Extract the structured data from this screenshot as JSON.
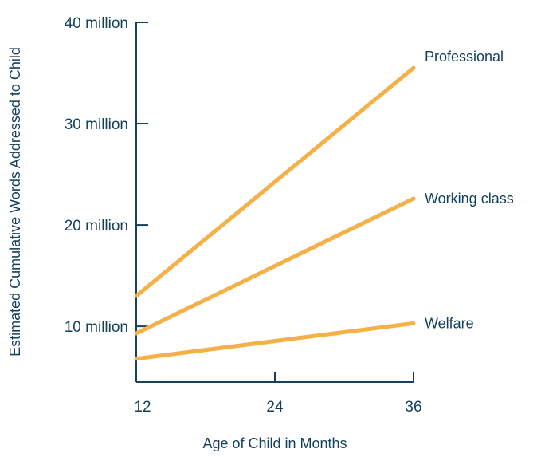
{
  "chart_data": {
    "type": "line",
    "title": "",
    "xlabel": "Age of Child in Months",
    "ylabel": "Estimated Cumulative Words Addressed to Child",
    "x": [
      12,
      36
    ],
    "xlim": [
      12,
      36
    ],
    "xticks": [
      12,
      24,
      36
    ],
    "xtick_labels": [
      "12",
      "24",
      "36"
    ],
    "ylim": [
      4500000,
      40000000
    ],
    "yticks": [
      10000000,
      20000000,
      30000000,
      40000000
    ],
    "ytick_labels": [
      "10 million",
      "20 million",
      "30 million",
      "40 million"
    ],
    "grid": false,
    "legend": "none",
    "series": [
      {
        "name": "Professional",
        "values": [
          13000000,
          35500000
        ]
      },
      {
        "name": "Working class",
        "values": [
          9300000,
          22600000
        ]
      },
      {
        "name": "Welfare",
        "values": [
          6800000,
          10300000
        ]
      }
    ],
    "colors": {
      "series_line": "#f5b047",
      "axis": "#15415c",
      "text": "#15415c"
    }
  }
}
